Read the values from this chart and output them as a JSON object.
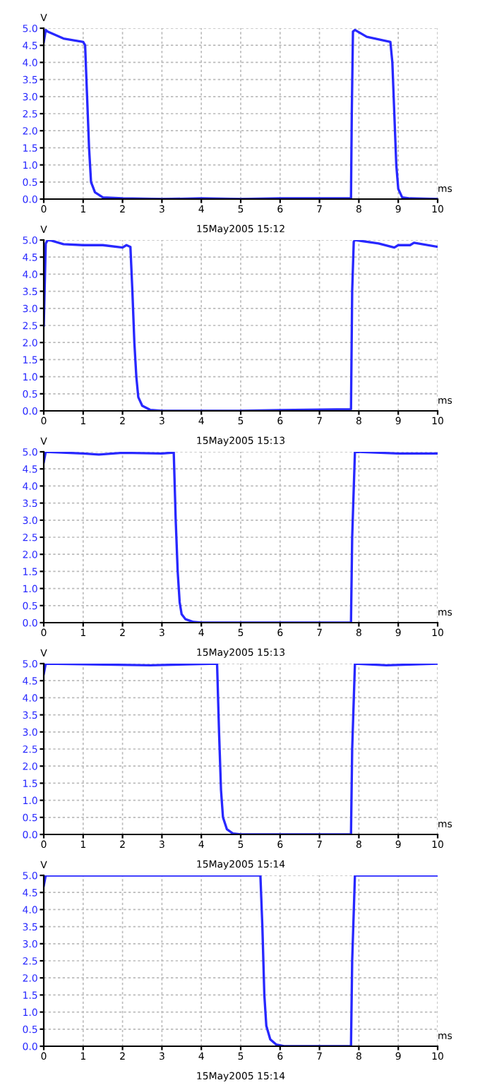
{
  "chart_data": [
    {
      "type": "line",
      "ylabel": "V",
      "xlabel": "ms",
      "annotations": [
        "15May2005 15:12"
      ],
      "xlim": [
        0,
        10
      ],
      "ylim": [
        0,
        5
      ],
      "xticks": [
        0,
        1,
        2,
        3,
        4,
        5,
        6,
        7,
        8,
        9,
        10
      ],
      "yticks": [
        {
          "value": 0,
          "label": "0.0"
        },
        {
          "value": 0.5,
          "label": "0.5"
        },
        {
          "value": 1,
          "label": "1.0"
        },
        {
          "value": 1.5,
          "label": "1.5"
        },
        {
          "value": 2,
          "label": "2.0"
        },
        {
          "value": 2.5,
          "label": "2.5"
        },
        {
          "value": 3,
          "label": "3.0"
        },
        {
          "value": 3.5,
          "label": "3.5"
        },
        {
          "value": 4,
          "label": "4.0"
        },
        {
          "value": 4.5,
          "label": "4.5"
        },
        {
          "value": 5,
          "label": "5.0"
        }
      ],
      "grid": true,
      "line_style": "solid",
      "marker": "none",
      "series": [
        {
          "color": "#2828ff",
          "x": [
            0,
            0.05,
            0.1,
            0.5,
            1.0,
            1.05,
            1.1,
            1.15,
            1.2,
            1.3,
            1.5,
            2,
            3,
            4,
            5,
            6,
            7,
            7.8,
            7.82,
            7.85,
            7.9,
            8.2,
            8.8,
            8.85,
            8.9,
            8.95,
            9.0,
            9.1,
            9.3,
            10
          ],
          "values": [
            4.6,
            4.95,
            4.9,
            4.7,
            4.6,
            4.5,
            3.0,
            1.5,
            0.5,
            0.2,
            0.05,
            0.02,
            0.0,
            0.02,
            0.0,
            0.02,
            0.02,
            0.02,
            2.5,
            4.9,
            4.95,
            4.75,
            4.6,
            4.0,
            2.5,
            1.0,
            0.3,
            0.05,
            0.02,
            0.0
          ]
        }
      ]
    },
    {
      "type": "line",
      "ylabel": "V",
      "xlabel": "ms",
      "annotations": [
        "15May2005 15:13"
      ],
      "xlim": [
        0,
        10
      ],
      "ylim": [
        0,
        5
      ],
      "xticks": [
        0,
        1,
        2,
        3,
        4,
        5,
        6,
        7,
        8,
        9,
        10
      ],
      "yticks": [
        {
          "value": 0,
          "label": "0.0"
        },
        {
          "value": 0.5,
          "label": "0.5"
        },
        {
          "value": 1,
          "label": "1.0"
        },
        {
          "value": 1.5,
          "label": "1.5"
        },
        {
          "value": 2,
          "label": "2.0"
        },
        {
          "value": 2.5,
          "label": "2.5"
        },
        {
          "value": 3,
          "label": "3.0"
        },
        {
          "value": 3.5,
          "label": "3.5"
        },
        {
          "value": 4,
          "label": "4.0"
        },
        {
          "value": 4.5,
          "label": "4.5"
        },
        {
          "value": 5,
          "label": "5.0"
        }
      ],
      "grid": true,
      "line_style": "solid",
      "marker": "none",
      "series": [
        {
          "color": "#2828ff",
          "x": [
            0,
            0.05,
            0.1,
            0.2,
            0.5,
            1,
            1.5,
            2.0,
            2.1,
            2.2,
            2.25,
            2.3,
            2.35,
            2.4,
            2.5,
            2.7,
            3,
            5,
            6,
            7.8,
            7.83,
            7.87,
            7.9,
            8.5,
            8.9,
            9,
            9.3,
            9.4,
            10
          ],
          "values": [
            2.5,
            4.9,
            5.0,
            4.98,
            4.88,
            4.85,
            4.85,
            4.78,
            4.85,
            4.8,
            3.5,
            2.0,
            1.0,
            0.4,
            0.15,
            0.03,
            0.0,
            0.0,
            0.02,
            0.05,
            3.5,
            4.95,
            5.0,
            4.9,
            4.78,
            4.85,
            4.85,
            4.92,
            4.8
          ]
        }
      ]
    },
    {
      "type": "line",
      "ylabel": "V",
      "xlabel": "ms",
      "annotations": [
        "15May2005 15:13"
      ],
      "xlim": [
        0,
        10
      ],
      "ylim": [
        0,
        5
      ],
      "xticks": [
        0,
        1,
        2,
        3,
        4,
        5,
        6,
        7,
        8,
        9,
        10
      ],
      "yticks": [
        {
          "value": 0,
          "label": "0.0"
        },
        {
          "value": 0.5,
          "label": "0.5"
        },
        {
          "value": 1,
          "label": "1.0"
        },
        {
          "value": 1.5,
          "label": "1.5"
        },
        {
          "value": 2,
          "label": "2.0"
        },
        {
          "value": 2.5,
          "label": "2.5"
        },
        {
          "value": 3,
          "label": "3.0"
        },
        {
          "value": 3.5,
          "label": "3.5"
        },
        {
          "value": 4,
          "label": "4.0"
        },
        {
          "value": 4.5,
          "label": "4.5"
        },
        {
          "value": 5,
          "label": "5.0"
        }
      ],
      "grid": true,
      "line_style": "solid",
      "marker": "none",
      "series": [
        {
          "color": "#2828ff",
          "x": [
            0,
            0.05,
            1,
            1.4,
            2,
            3,
            3.3,
            3.35,
            3.4,
            3.45,
            3.5,
            3.6,
            3.8,
            4,
            7.8,
            7.83,
            7.9,
            9,
            10
          ],
          "values": [
            4.7,
            5.0,
            4.95,
            4.92,
            4.97,
            4.95,
            4.98,
            3.0,
            1.5,
            0.6,
            0.25,
            0.1,
            0.02,
            0.0,
            0.0,
            2.5,
            5.0,
            4.95,
            4.95
          ]
        }
      ]
    },
    {
      "type": "line",
      "ylabel": "V",
      "xlabel": "ms",
      "annotations": [
        "15May2005 15:14"
      ],
      "xlim": [
        0,
        10
      ],
      "ylim": [
        0,
        5
      ],
      "xticks": [
        0,
        1,
        2,
        3,
        4,
        5,
        6,
        7,
        8,
        9,
        10
      ],
      "yticks": [
        {
          "value": 0,
          "label": "0.0"
        },
        {
          "value": 0.5,
          "label": "0.5"
        },
        {
          "value": 1,
          "label": "1.0"
        },
        {
          "value": 1.5,
          "label": "1.5"
        },
        {
          "value": 2,
          "label": "2.0"
        },
        {
          "value": 2.5,
          "label": "2.5"
        },
        {
          "value": 3,
          "label": "3.0"
        },
        {
          "value": 3.5,
          "label": "3.5"
        },
        {
          "value": 4,
          "label": "4.0"
        },
        {
          "value": 4.5,
          "label": "4.5"
        },
        {
          "value": 5,
          "label": "5.0"
        }
      ],
      "grid": true,
      "line_style": "solid",
      "marker": "none",
      "series": [
        {
          "color": "#2828ff",
          "x": [
            0,
            0.05,
            2.7,
            4.4,
            4.45,
            4.5,
            4.55,
            4.65,
            4.8,
            5,
            7.8,
            7.83,
            7.9,
            8.7,
            10
          ],
          "values": [
            4.7,
            5.0,
            4.95,
            5.0,
            3.0,
            1.3,
            0.5,
            0.15,
            0.03,
            0.0,
            0.0,
            2.5,
            5.0,
            4.95,
            5.0
          ]
        }
      ]
    },
    {
      "type": "line",
      "ylabel": "V",
      "xlabel": "ms",
      "annotations": [
        "15May2005 15:14"
      ],
      "xlim": [
        0,
        10
      ],
      "ylim": [
        0,
        5
      ],
      "xticks": [
        0,
        1,
        2,
        3,
        4,
        5,
        6,
        7,
        8,
        9,
        10
      ],
      "yticks": [
        {
          "value": 0,
          "label": "0.0"
        },
        {
          "value": 0.5,
          "label": "0.5"
        },
        {
          "value": 1,
          "label": "1.0"
        },
        {
          "value": 1.5,
          "label": "1.5"
        },
        {
          "value": 2,
          "label": "2.0"
        },
        {
          "value": 2.5,
          "label": "2.5"
        },
        {
          "value": 3,
          "label": "3.0"
        },
        {
          "value": 3.5,
          "label": "3.5"
        },
        {
          "value": 4,
          "label": "4.0"
        },
        {
          "value": 4.5,
          "label": "4.5"
        },
        {
          "value": 5,
          "label": "5.0"
        }
      ],
      "grid": true,
      "line_style": "solid",
      "marker": "none",
      "series": [
        {
          "color": "#2828ff",
          "x": [
            0,
            0.05,
            5.5,
            5.55,
            5.6,
            5.65,
            5.75,
            5.9,
            6.1,
            7.8,
            7.83,
            7.9,
            10
          ],
          "values": [
            4.7,
            5.0,
            5.0,
            3.5,
            1.5,
            0.6,
            0.2,
            0.05,
            0.0,
            0.0,
            2.5,
            5.0,
            5.0
          ]
        }
      ]
    }
  ]
}
